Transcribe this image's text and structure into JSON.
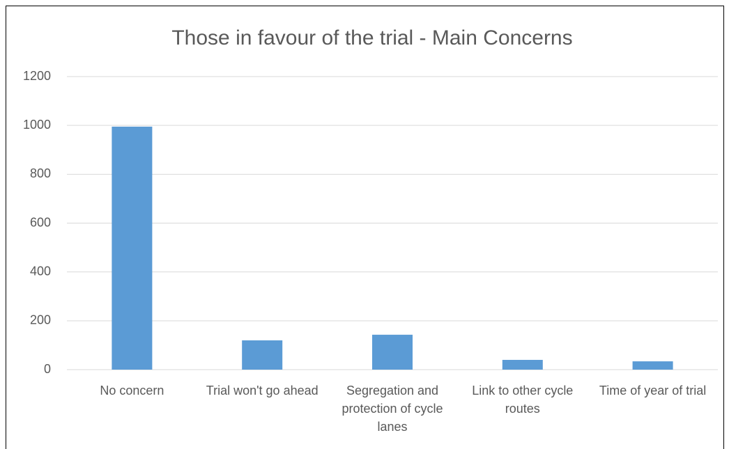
{
  "chart_data": {
    "type": "bar",
    "title": "Those in favour of the trial - Main Concerns",
    "categories": [
      "No concern",
      "Trial won't go ahead",
      "Segregation and protection of cycle lanes",
      "Link to other cycle routes",
      "Time of year of trial"
    ],
    "values": [
      995,
      120,
      143,
      40,
      34
    ],
    "color": "#5b9bd5",
    "ylim": [
      0,
      1200
    ],
    "yticks": [
      0,
      200,
      400,
      600,
      800,
      1000,
      1200
    ],
    "grid": true
  }
}
